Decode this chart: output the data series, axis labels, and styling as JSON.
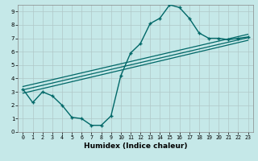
{
  "title": "",
  "xlabel": "Humidex (Indice chaleur)",
  "ylabel": "",
  "bg_color": "#c5e8e8",
  "grid_color": "#b0c8c8",
  "line_color": "#006868",
  "xlim": [
    -0.5,
    23.5
  ],
  "ylim": [
    0,
    9.5
  ],
  "xticks": [
    0,
    1,
    2,
    3,
    4,
    5,
    6,
    7,
    8,
    9,
    10,
    11,
    12,
    13,
    14,
    15,
    16,
    17,
    18,
    19,
    20,
    21,
    22,
    23
  ],
  "yticks": [
    0,
    1,
    2,
    3,
    4,
    5,
    6,
    7,
    8,
    9
  ],
  "curve1_x": [
    0,
    1,
    2,
    3,
    4,
    5,
    6,
    7,
    8,
    9,
    10,
    11,
    12,
    13,
    14,
    15,
    16,
    17,
    18,
    19,
    20,
    21,
    22,
    23
  ],
  "curve1_y": [
    3.2,
    2.2,
    3.0,
    2.7,
    2.0,
    1.1,
    1.0,
    0.5,
    0.5,
    1.2,
    4.2,
    5.9,
    6.6,
    8.1,
    8.5,
    9.5,
    9.3,
    8.5,
    7.4,
    7.0,
    7.0,
    6.9,
    7.0,
    7.1
  ],
  "line1_x": [
    0,
    23
  ],
  "line1_y": [
    2.9,
    6.85
  ],
  "line2_x": [
    0,
    23
  ],
  "line2_y": [
    3.15,
    7.05
  ],
  "line3_x": [
    0,
    23
  ],
  "line3_y": [
    3.4,
    7.3
  ],
  "xlabel_fontsize": 6.5,
  "tick_fontsize": 4.8
}
